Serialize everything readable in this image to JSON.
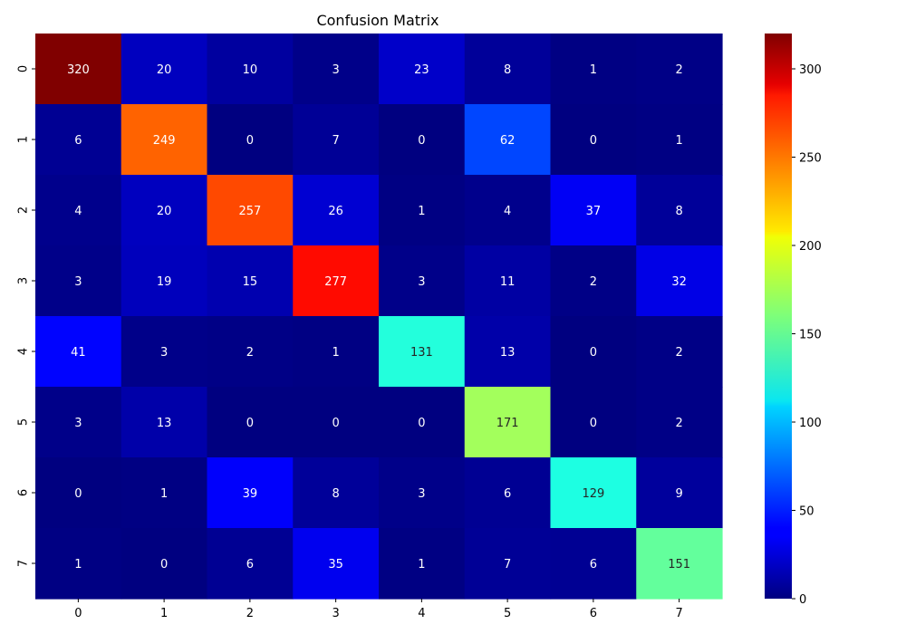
{
  "chart_data": {
    "type": "heatmap",
    "title": "Confusion Matrix",
    "xlabel": "",
    "ylabel": "",
    "x_categories": [
      "0",
      "1",
      "2",
      "3",
      "4",
      "5",
      "6",
      "7"
    ],
    "y_categories": [
      "0",
      "1",
      "2",
      "3",
      "4",
      "5",
      "6",
      "7"
    ],
    "values": [
      [
        320,
        20,
        10,
        3,
        23,
        8,
        1,
        2
      ],
      [
        6,
        249,
        0,
        7,
        0,
        62,
        0,
        1
      ],
      [
        4,
        20,
        257,
        26,
        1,
        4,
        37,
        8
      ],
      [
        3,
        19,
        15,
        277,
        3,
        11,
        2,
        32
      ],
      [
        41,
        3,
        2,
        1,
        131,
        13,
        0,
        2
      ],
      [
        3,
        13,
        0,
        0,
        0,
        171,
        0,
        2
      ],
      [
        0,
        1,
        39,
        8,
        3,
        6,
        129,
        9
      ],
      [
        1,
        0,
        6,
        35,
        1,
        7,
        6,
        151
      ]
    ],
    "colormap": "jet",
    "color_range": [
      0,
      320
    ],
    "colorbar_ticks": [
      0,
      50,
      100,
      150,
      200,
      250,
      300
    ],
    "colorbar_labels": [
      "0",
      "50",
      "100",
      "150",
      "200",
      "250",
      "300"
    ],
    "annotated": true,
    "grid": false
  }
}
